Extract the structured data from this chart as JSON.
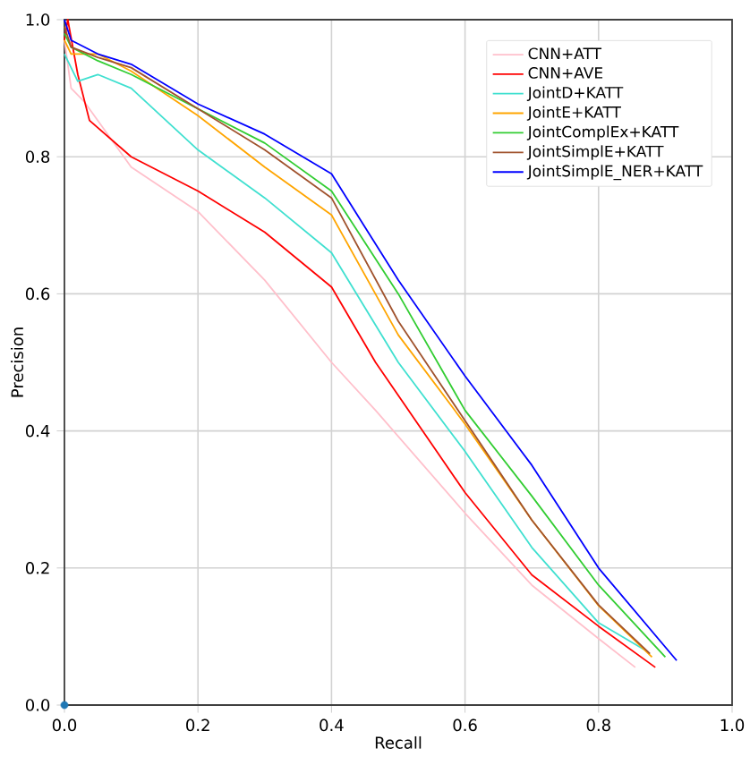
{
  "chart_data": {
    "type": "line",
    "xlabel": "Recall",
    "ylabel": "Precision",
    "xlim": [
      0,
      1
    ],
    "ylim": [
      0,
      1
    ],
    "xticks": [
      {
        "value": 0,
        "label": "0.0"
      },
      {
        "value": 0.2,
        "label": "0.2"
      },
      {
        "value": 0.4,
        "label": "0.4"
      },
      {
        "value": 0.6,
        "label": "0.6"
      },
      {
        "value": 0.8,
        "label": "0.8"
      },
      {
        "value": 1,
        "label": "1.0"
      }
    ],
    "yticks": [
      {
        "value": 0,
        "label": "0.0"
      },
      {
        "value": 0.2,
        "label": "0.2"
      },
      {
        "value": 0.4,
        "label": "0.4"
      },
      {
        "value": 0.6,
        "label": "0.6"
      },
      {
        "value": 0.8,
        "label": "0.8"
      },
      {
        "value": 1,
        "label": "1.0"
      }
    ],
    "grid": true,
    "legend": "top right",
    "marker": "none",
    "line_style": "solid",
    "series": [
      {
        "name": "CNN+ATT",
        "color": "#ffc0cb",
        "x": [
          0,
          0.01,
          0.03,
          0.1,
          0.2,
          0.3,
          0.4,
          0.466,
          0.6,
          0.7,
          0.8,
          0.855
        ],
        "values": [
          0.97,
          0.9,
          0.88,
          0.785,
          0.72,
          0.62,
          0.5,
          0.43,
          0.28,
          0.175,
          0.097,
          0.055
        ]
      },
      {
        "name": "CNN+AVE",
        "color": "#ff0000",
        "x": [
          0,
          0.005,
          0.02,
          0.0375,
          0.1,
          0.2,
          0.3,
          0.4,
          0.466,
          0.6,
          0.7,
          0.8,
          0.885
        ],
        "values": [
          0.97,
          1.0,
          0.92,
          0.853,
          0.8,
          0.75,
          0.69,
          0.61,
          0.5,
          0.31,
          0.19,
          0.115,
          0.055
        ]
      },
      {
        "name": "JointD+KATT",
        "color": "#40e0d0",
        "x": [
          0,
          0.01,
          0.02,
          0.05,
          0.1,
          0.2,
          0.3,
          0.4,
          0.5,
          0.6,
          0.7,
          0.8,
          0.87
        ],
        "values": [
          0.95,
          0.93,
          0.91,
          0.92,
          0.9,
          0.81,
          0.74,
          0.66,
          0.5,
          0.37,
          0.23,
          0.12,
          0.08
        ]
      },
      {
        "name": "JointE+KATT",
        "color": "#ffa500",
        "x": [
          0,
          0.01,
          0.05,
          0.1,
          0.2,
          0.3,
          0.4,
          0.5,
          0.6,
          0.7,
          0.8,
          0.88
        ],
        "values": [
          0.97,
          0.95,
          0.95,
          0.925,
          0.86,
          0.785,
          0.715,
          0.54,
          0.41,
          0.27,
          0.145,
          0.07
        ]
      },
      {
        "name": "JointComplEx+KATT",
        "color": "#32cd32",
        "x": [
          0,
          0.01,
          0.05,
          0.1,
          0.2,
          0.3,
          0.4,
          0.5,
          0.6,
          0.7,
          0.8,
          0.9
        ],
        "values": [
          0.98,
          0.96,
          0.94,
          0.92,
          0.87,
          0.82,
          0.75,
          0.6,
          0.43,
          0.305,
          0.175,
          0.07
        ]
      },
      {
        "name": "JointSimplE+KATT",
        "color": "#a0522d",
        "x": [
          0,
          0.01,
          0.05,
          0.1,
          0.2,
          0.3,
          0.4,
          0.5,
          0.6,
          0.7,
          0.8,
          0.877
        ],
        "values": [
          0.99,
          0.96,
          0.945,
          0.93,
          0.87,
          0.81,
          0.74,
          0.56,
          0.415,
          0.27,
          0.146,
          0.075
        ]
      },
      {
        "name": "JointSimplE_NER+KATT",
        "color": "#0000ff",
        "x": [
          0,
          0.01,
          0.05,
          0.1,
          0.2,
          0.3,
          0.4,
          0.5,
          0.6,
          0.7,
          0.8,
          0.917
        ],
        "values": [
          1.0,
          0.97,
          0.95,
          0.935,
          0.877,
          0.833,
          0.775,
          0.62,
          0.48,
          0.35,
          0.2,
          0.065
        ]
      },
      {
        "type": "scatter",
        "marker": "circle",
        "color": "#1f77b4",
        "x": [
          0
        ],
        "values": [
          0
        ]
      }
    ]
  }
}
